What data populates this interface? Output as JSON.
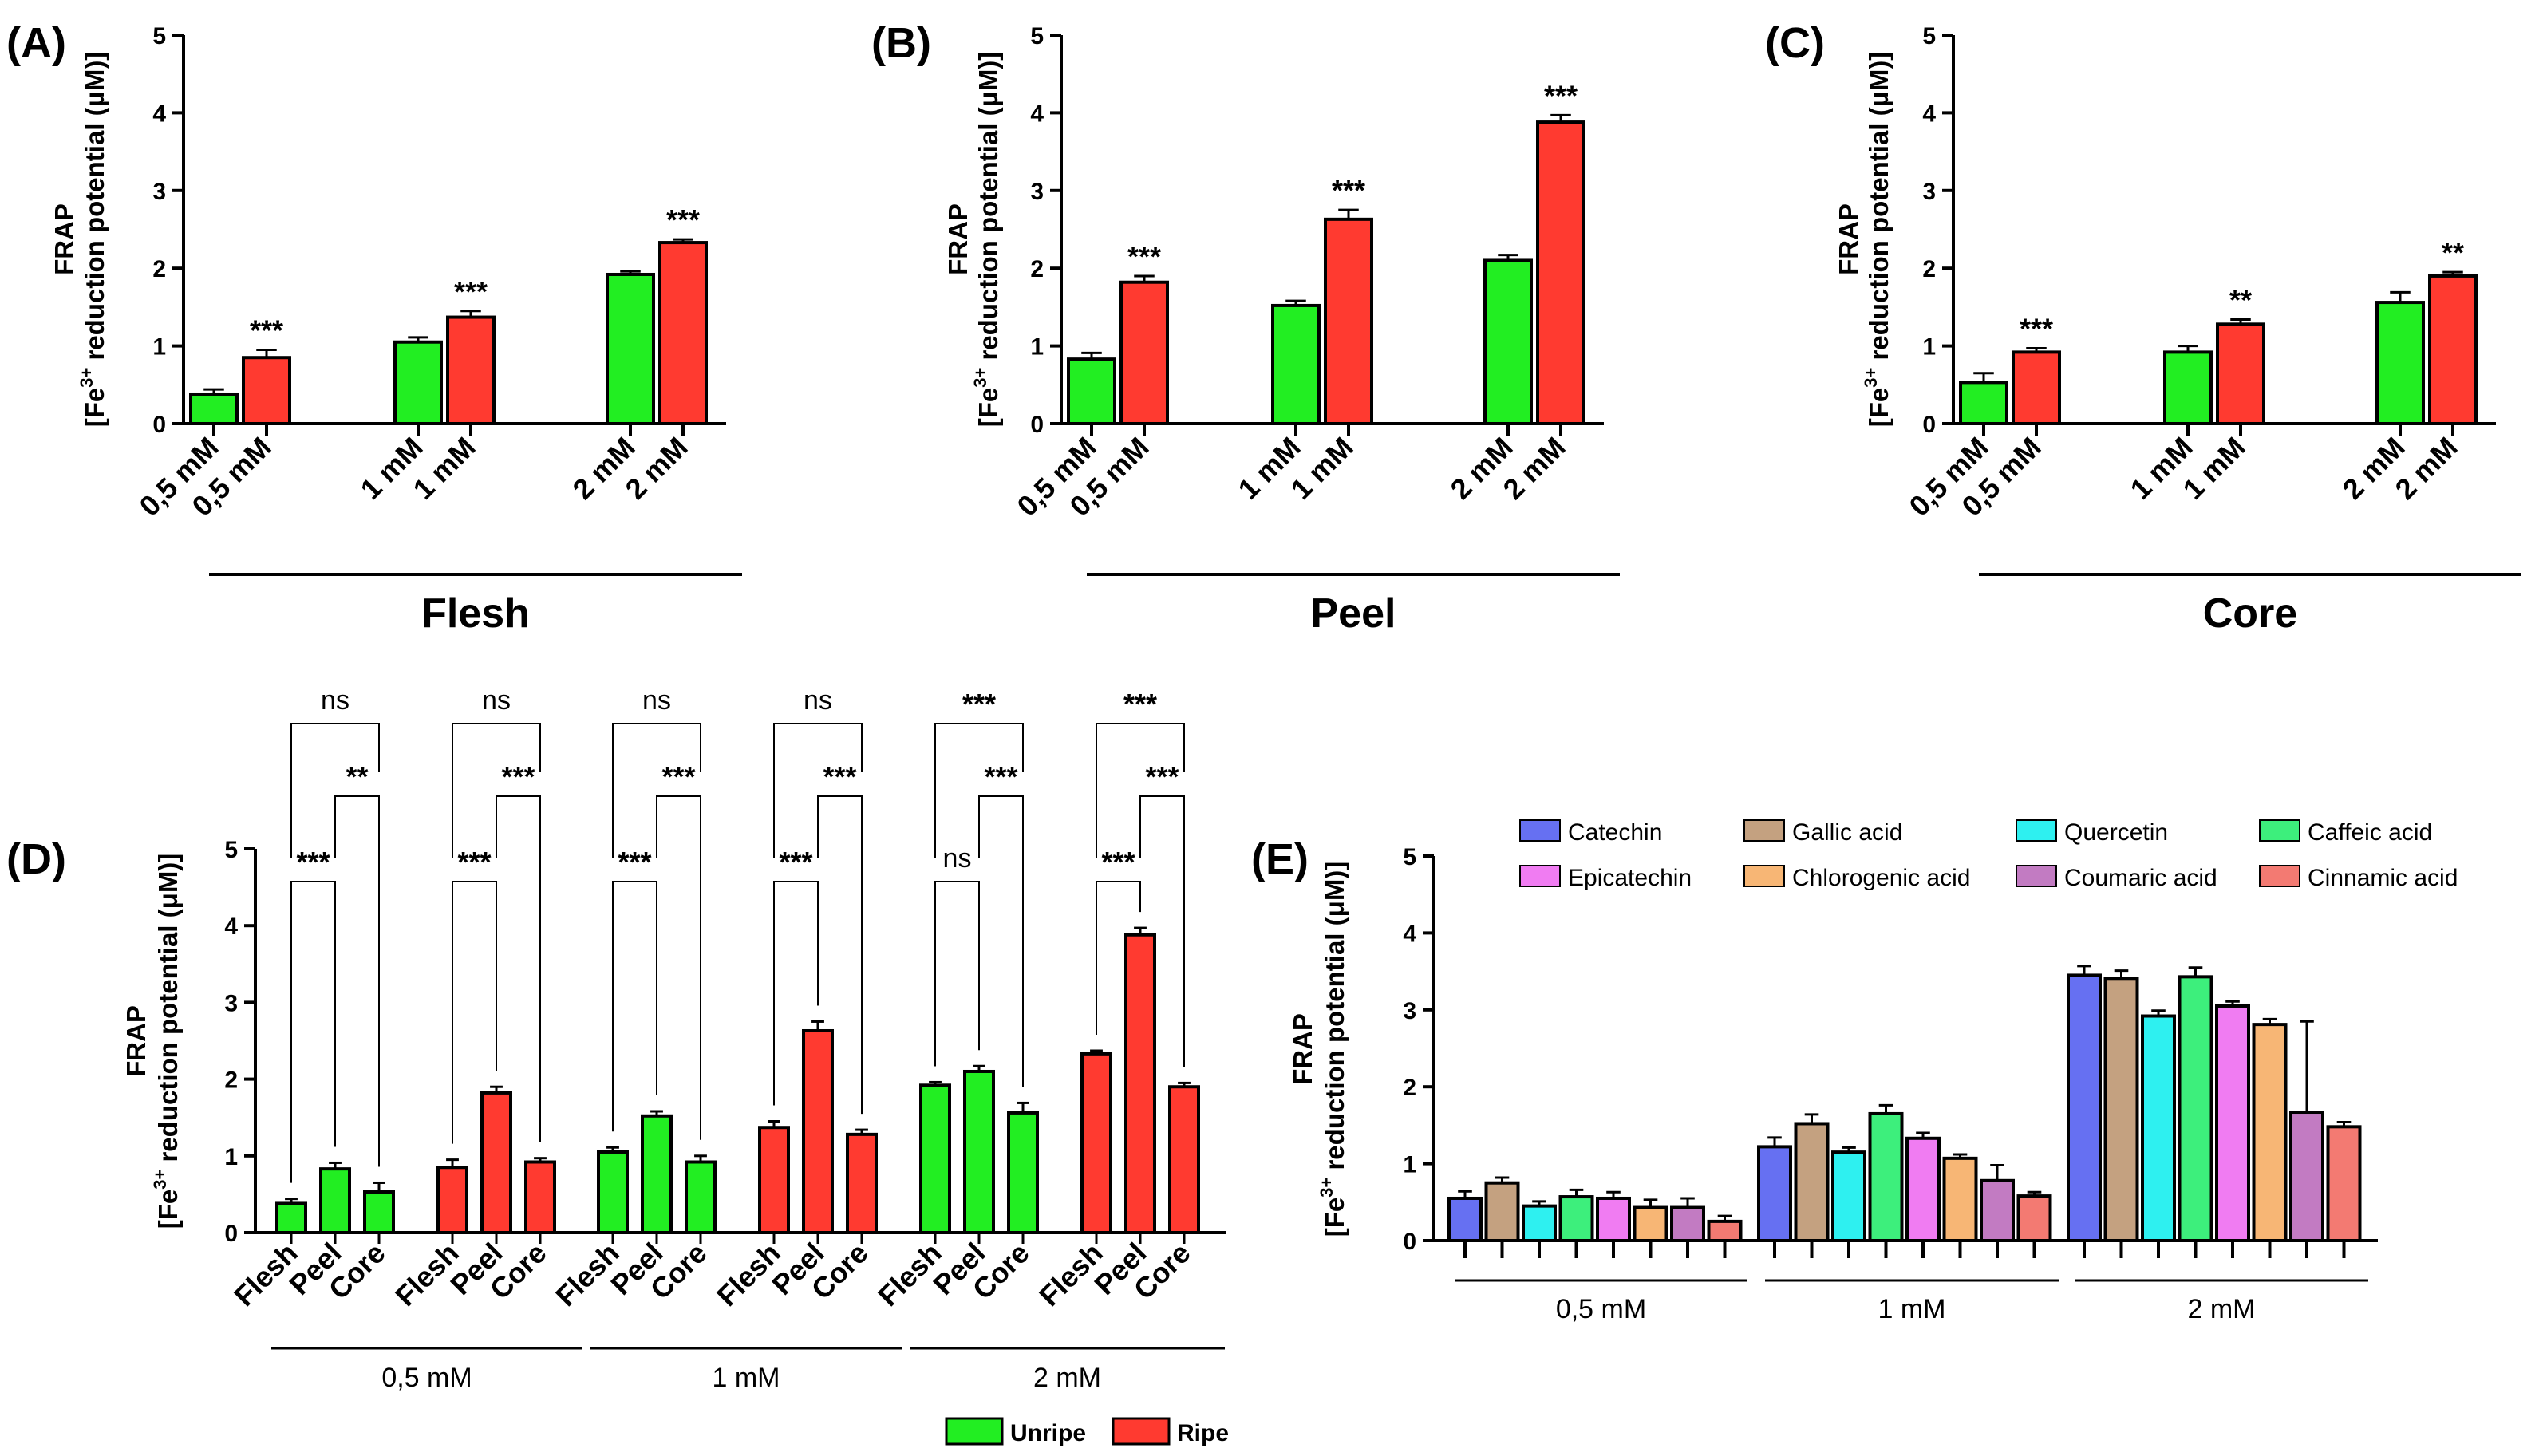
{
  "colors": {
    "unripe": "#22ee22",
    "ripe": "#ff3a30",
    "axis": "#000000"
  },
  "chart_data": [
    {
      "panel": "(A)",
      "type": "bar",
      "ylabel_line1": "FRAP",
      "ylabel_line2_pre": "[Fe",
      "ylabel_line2_sup": "3+",
      "ylabel_line2_post": " reduction potential (μM)]",
      "ylim": [
        0,
        5
      ],
      "yticks": [
        "0",
        "1",
        "2",
        "3",
        "4",
        "5"
      ],
      "group_label": "Flesh",
      "categories": [
        "0,5 mM",
        "0,5 mM",
        "1 mM",
        "1 mM",
        "2 mM",
        "2 mM"
      ],
      "series_of_bar": [
        "Unripe",
        "Ripe",
        "Unripe",
        "Ripe",
        "Unripe",
        "Ripe"
      ],
      "values": [
        0.38,
        0.85,
        1.05,
        1.37,
        1.92,
        2.33
      ],
      "errors": [
        0.06,
        0.1,
        0.06,
        0.08,
        0.04,
        0.04
      ],
      "significance": [
        "",
        "***",
        "",
        "***",
        "",
        "***"
      ]
    },
    {
      "panel": "(B)",
      "type": "bar",
      "ylabel_line1": "FRAP",
      "ylabel_line2_pre": "[Fe",
      "ylabel_line2_sup": "3+",
      "ylabel_line2_post": " reduction potential (μM)]",
      "ylim": [
        0,
        5
      ],
      "yticks": [
        "0",
        "1",
        "2",
        "3",
        "4",
        "5"
      ],
      "group_label": "Peel",
      "categories": [
        "0,5 mM",
        "0,5 mM",
        "1 mM",
        "1 mM",
        "2 mM",
        "2 mM"
      ],
      "series_of_bar": [
        "Unripe",
        "Ripe",
        "Unripe",
        "Ripe",
        "Unripe",
        "Ripe"
      ],
      "values": [
        0.83,
        1.82,
        1.52,
        2.63,
        2.1,
        3.88
      ],
      "errors": [
        0.08,
        0.08,
        0.06,
        0.12,
        0.07,
        0.09
      ],
      "significance": [
        "",
        "***",
        "",
        "***",
        "",
        "***"
      ]
    },
    {
      "panel": "(C)",
      "type": "bar",
      "ylabel_line1": "FRAP",
      "ylabel_line2_pre": "[Fe",
      "ylabel_line2_sup": "3+",
      "ylabel_line2_post": " reduction potential (μM)]",
      "ylim": [
        0,
        5
      ],
      "yticks": [
        "0",
        "1",
        "2",
        "3",
        "4",
        "5"
      ],
      "group_label": "Core",
      "categories": [
        "0,5 mM",
        "0,5 mM",
        "1 mM",
        "1 mM",
        "2 mM",
        "2 mM"
      ],
      "series_of_bar": [
        "Unripe",
        "Ripe",
        "Unripe",
        "Ripe",
        "Unripe",
        "Ripe"
      ],
      "values": [
        0.53,
        0.92,
        0.92,
        1.28,
        1.56,
        1.9
      ],
      "errors": [
        0.12,
        0.05,
        0.08,
        0.06,
        0.13,
        0.05
      ],
      "significance": [
        "",
        "***",
        "",
        "**",
        "",
        "**"
      ]
    },
    {
      "panel": "(D)",
      "type": "bar",
      "ylabel_line1": "FRAP",
      "ylabel_line2_pre": "[Fe",
      "ylabel_line2_sup": "3+",
      "ylabel_line2_post": " reduction potential (μM)]",
      "ylim": [
        0,
        5
      ],
      "yticks": [
        "0",
        "1",
        "2",
        "3",
        "4",
        "5"
      ],
      "groups": [
        {
          "label": "0,5 mM",
          "clusters": [
            {
              "series": "Unripe",
              "categories": [
                "Flesh",
                "Peel",
                "Core"
              ],
              "values": [
                0.38,
                0.83,
                0.53
              ],
              "errors": [
                0.06,
                0.08,
                0.12
              ],
              "sig_outer": "ns",
              "sig_inner": "**",
              "sig_first": "***"
            },
            {
              "series": "Ripe",
              "categories": [
                "Flesh",
                "Peel",
                "Core"
              ],
              "values": [
                0.85,
                1.82,
                0.92
              ],
              "errors": [
                0.1,
                0.08,
                0.05
              ],
              "sig_outer": "ns",
              "sig_inner": "***",
              "sig_first": "***"
            }
          ]
        },
        {
          "label": "1 mM",
          "clusters": [
            {
              "series": "Unripe",
              "categories": [
                "Flesh",
                "Peel",
                "Core"
              ],
              "values": [
                1.05,
                1.52,
                0.92
              ],
              "errors": [
                0.06,
                0.06,
                0.08
              ],
              "sig_outer": "ns",
              "sig_inner": "***",
              "sig_first": "***"
            },
            {
              "series": "Ripe",
              "categories": [
                "Flesh",
                "Peel",
                "Core"
              ],
              "values": [
                1.37,
                2.63,
                1.28
              ],
              "errors": [
                0.08,
                0.12,
                0.06
              ],
              "sig_outer": "ns",
              "sig_inner": "***",
              "sig_first": "***"
            }
          ]
        },
        {
          "label": "2 mM",
          "clusters": [
            {
              "series": "Unripe",
              "categories": [
                "Flesh",
                "Peel",
                "Core"
              ],
              "values": [
                1.92,
                2.1,
                1.56
              ],
              "errors": [
                0.04,
                0.07,
                0.13
              ],
              "sig_outer": "***",
              "sig_inner": "***",
              "sig_first": "ns"
            },
            {
              "series": "Ripe",
              "categories": [
                "Flesh",
                "Peel",
                "Core"
              ],
              "values": [
                2.33,
                3.88,
                1.9
              ],
              "errors": [
                0.04,
                0.09,
                0.05
              ],
              "sig_outer": "***",
              "sig_inner": "***",
              "sig_first": "***"
            }
          ]
        }
      ],
      "legend": [
        {
          "name": "Unripe",
          "color": "#22ee22"
        },
        {
          "name": "Ripe",
          "color": "#ff3a30"
        }
      ]
    },
    {
      "panel": "(E)",
      "type": "bar",
      "ylabel_line1": "FRAP",
      "ylabel_line2_pre": "[Fe",
      "ylabel_line2_sup": "3+",
      "ylabel_line2_post": " reduction potential (μM)]",
      "ylim": [
        0,
        5
      ],
      "yticks": [
        "0",
        "1",
        "2",
        "3",
        "4",
        "5"
      ],
      "categories": [
        "0,5 mM",
        "1 mM",
        "2 mM"
      ],
      "series": [
        {
          "name": "Catechin",
          "color": "#6670f2",
          "values": [
            0.55,
            1.22,
            3.45
          ],
          "errors": [
            0.09,
            0.12,
            0.12
          ]
        },
        {
          "name": "Gallic acid",
          "color": "#c4a180",
          "values": [
            0.75,
            1.52,
            3.41
          ],
          "errors": [
            0.07,
            0.12,
            0.1
          ]
        },
        {
          "name": "Quercetin",
          "color": "#2ef0f0",
          "values": [
            0.45,
            1.15,
            2.92
          ],
          "errors": [
            0.06,
            0.06,
            0.07
          ]
        },
        {
          "name": "Caffeic acid",
          "color": "#3def7c",
          "values": [
            0.57,
            1.65,
            3.43
          ],
          "errors": [
            0.09,
            0.11,
            0.12
          ]
        },
        {
          "name": "Epicatechin",
          "color": "#f07cf2",
          "values": [
            0.55,
            1.33,
            3.05
          ],
          "errors": [
            0.08,
            0.07,
            0.06
          ]
        },
        {
          "name": "Chlorogenic acid",
          "color": "#f7b675",
          "values": [
            0.43,
            1.07,
            2.81
          ],
          "errors": [
            0.1,
            0.05,
            0.07
          ]
        },
        {
          "name": "Coumaric acid",
          "color": "#c27bc2",
          "values": [
            0.43,
            0.78,
            1.67
          ],
          "errors": [
            0.12,
            0.2,
            1.18
          ]
        },
        {
          "name": "Cinnamic acid",
          "color": "#f37a72",
          "values": [
            0.25,
            0.58,
            1.48
          ],
          "errors": [
            0.07,
            0.05,
            0.06
          ]
        }
      ],
      "legend_rows": [
        [
          "Catechin",
          "Gallic acid",
          "Quercetin",
          "Caffeic acid"
        ],
        [
          "Epicatechin",
          "Chlorogenic acid",
          "Coumaric acid",
          "Cinnamic acid"
        ]
      ]
    }
  ]
}
